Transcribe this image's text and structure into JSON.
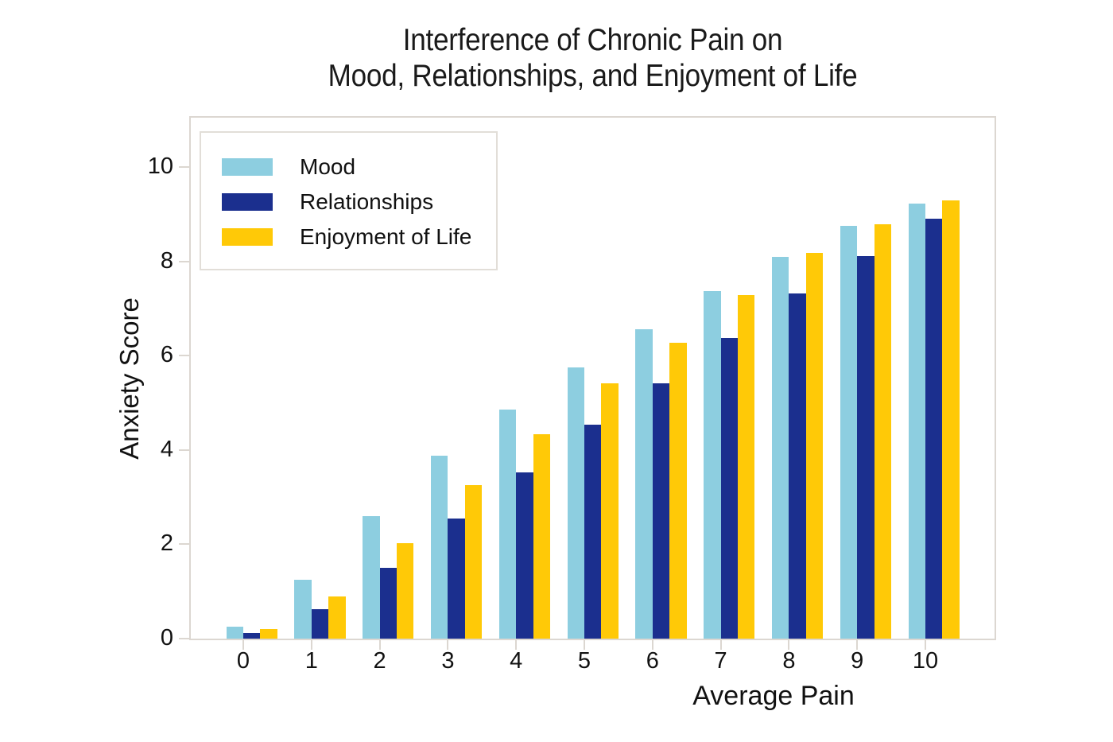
{
  "title": {
    "line1": "Interference of Chronic Pain on",
    "line2": "Mood, Relationships, and Enjoyment of Life"
  },
  "chart_data": {
    "type": "bar",
    "title": "Interference of Chronic Pain on Mood, Relationships, and Enjoyment of Life",
    "xlabel": "Average Pain",
    "ylabel": "Anxiety Score",
    "categories": [
      "0",
      "1",
      "2",
      "3",
      "4",
      "5",
      "6",
      "7",
      "8",
      "9",
      "10"
    ],
    "yticks": [
      0,
      2,
      4,
      6,
      8,
      10
    ],
    "ylim": [
      0,
      11.05
    ],
    "grid": false,
    "legend_position": "upper left",
    "background_color": "#ffffff",
    "frame_color": "#dcd7d1",
    "series": [
      {
        "name": "Mood",
        "color": "#8dcee0",
        "values": [
          0.25,
          1.25,
          2.6,
          3.88,
          4.86,
          5.75,
          6.56,
          7.37,
          8.1,
          8.75,
          9.22
        ]
      },
      {
        "name": "Relationships",
        "color": "#1b2f8e",
        "values": [
          0.12,
          0.62,
          1.51,
          2.55,
          3.52,
          4.54,
          5.41,
          6.38,
          7.32,
          8.11,
          8.9
        ]
      },
      {
        "name": "Enjoyment of Life",
        "color": "#ffc907",
        "values": [
          0.2,
          0.9,
          2.02,
          3.26,
          4.33,
          5.42,
          6.28,
          7.28,
          8.18,
          8.79,
          9.29
        ]
      }
    ]
  }
}
